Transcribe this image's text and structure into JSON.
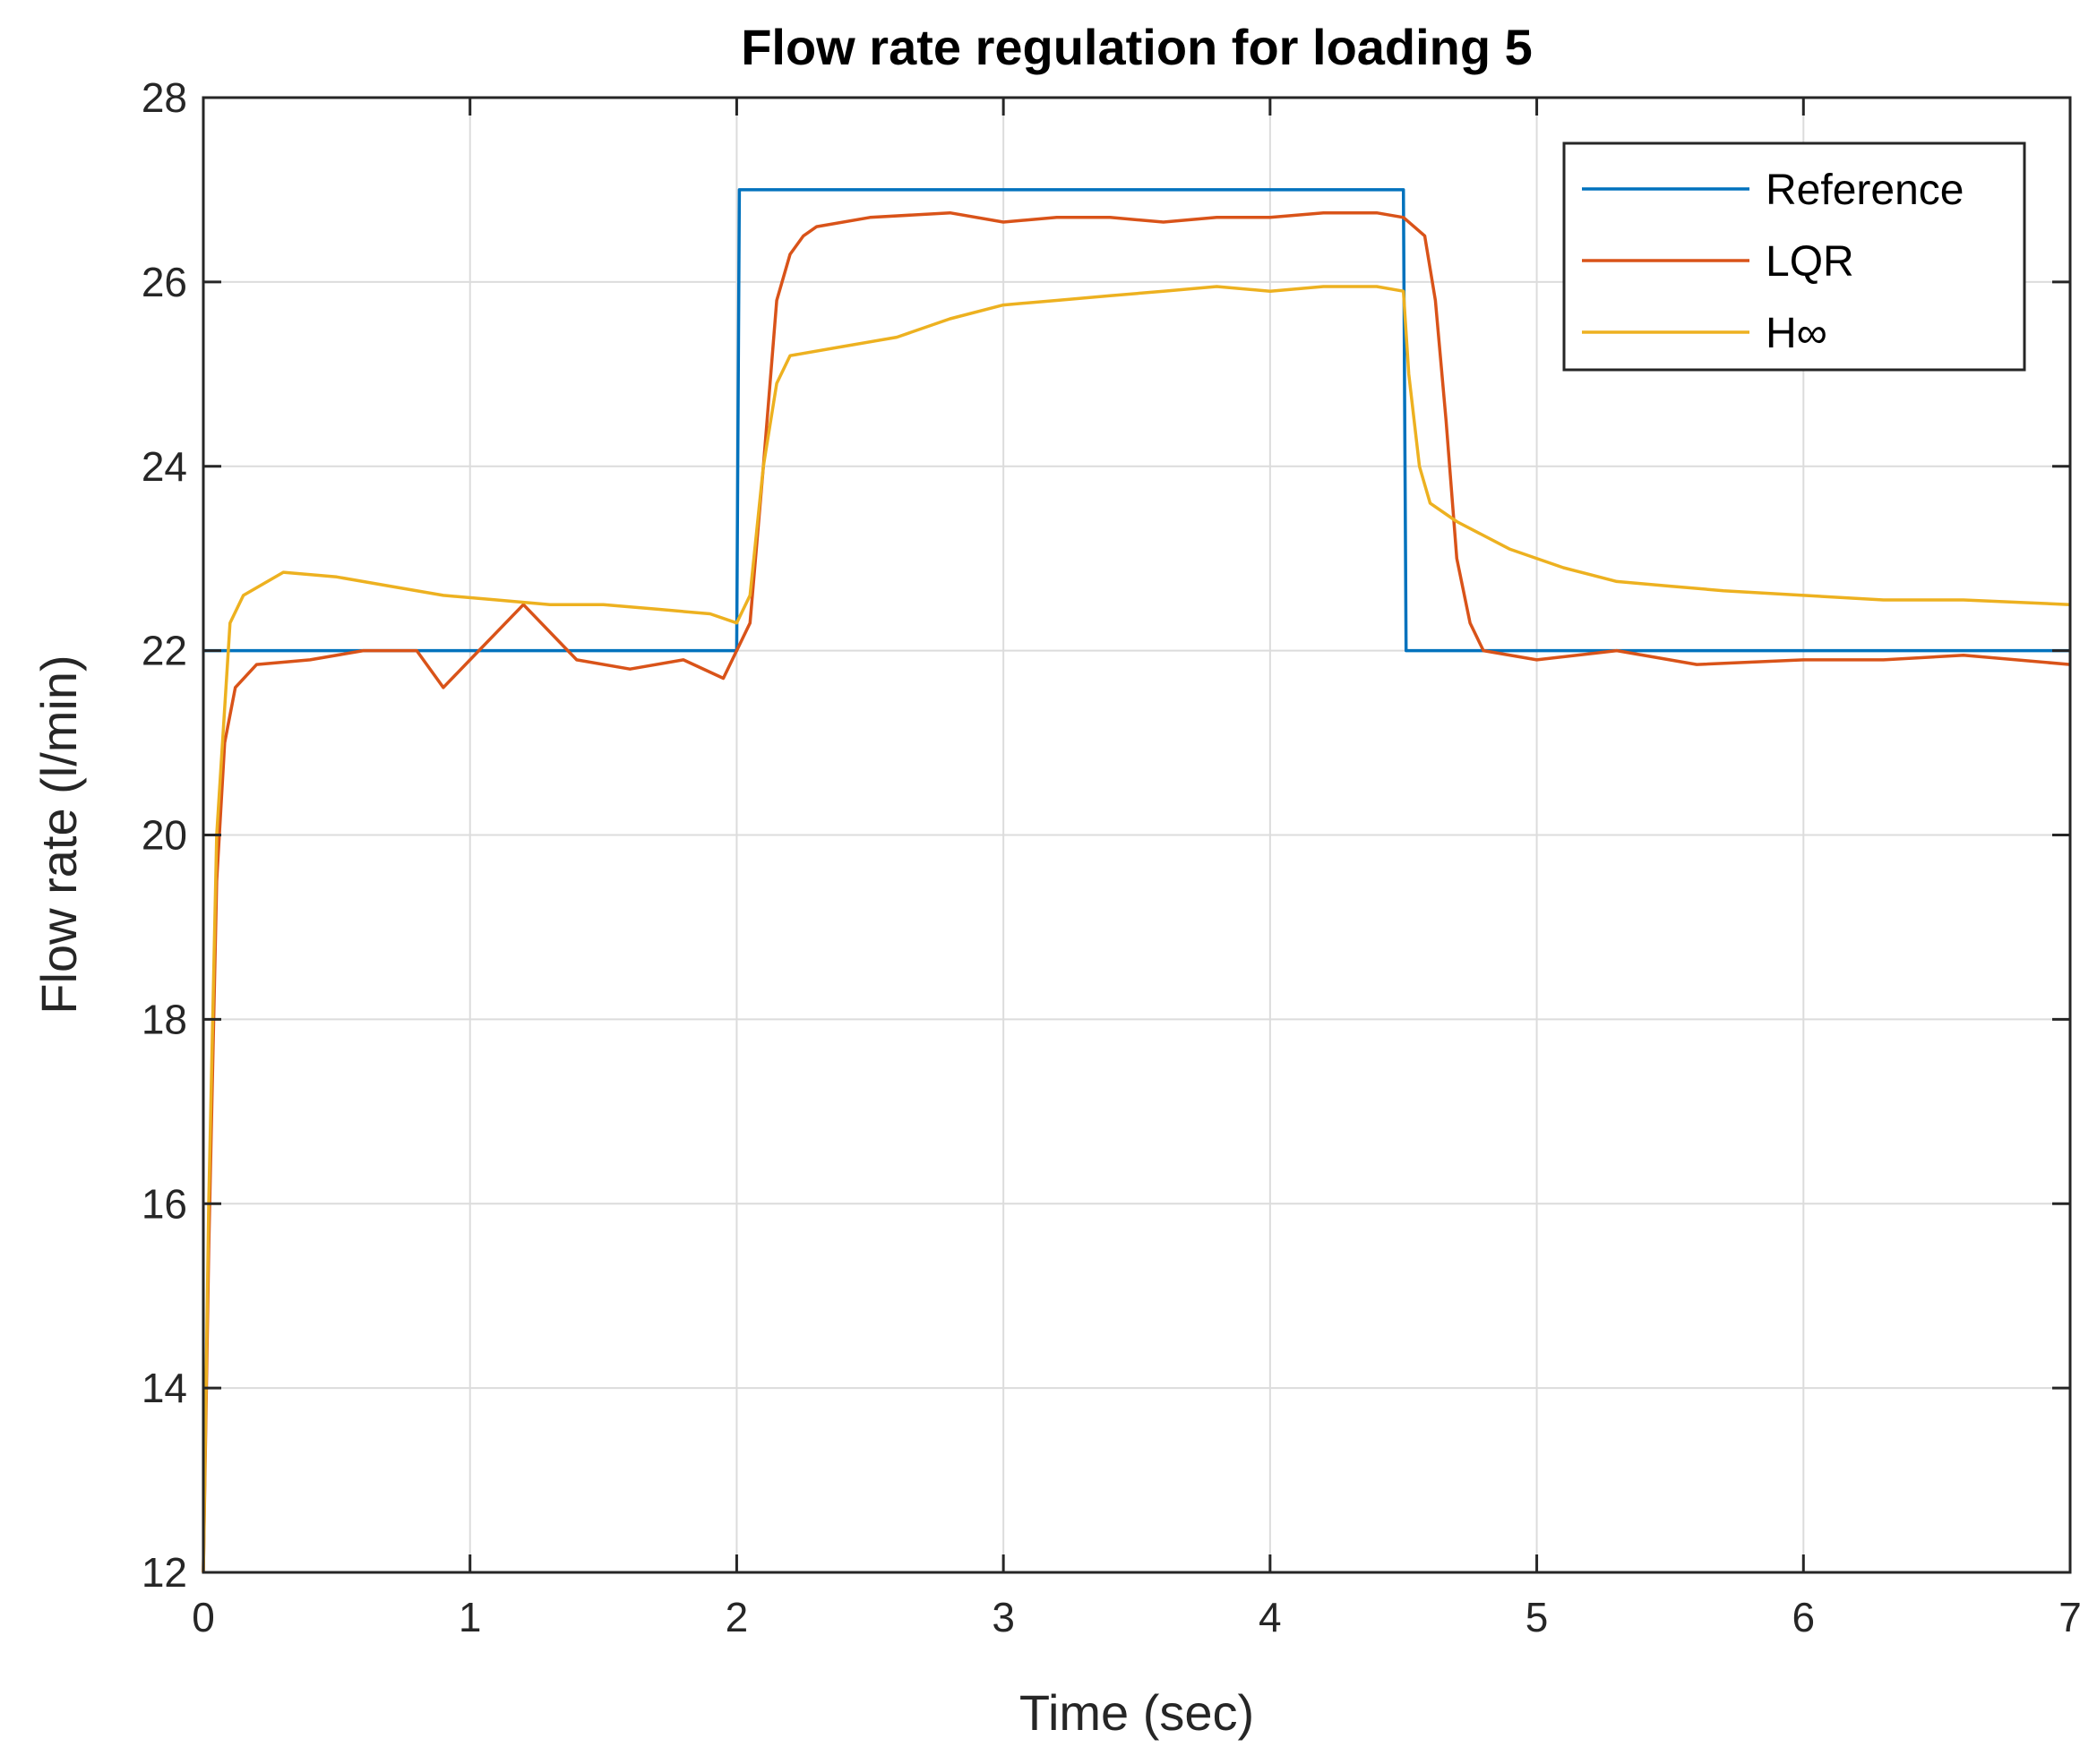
{
  "chart_data": {
    "type": "line",
    "title": "Flow rate regulation for loading 5",
    "xlabel": "Time (sec)",
    "ylabel": "Flow rate (l/min)",
    "xlim": [
      0,
      7
    ],
    "ylim": [
      12,
      28
    ],
    "xticks": [
      0,
      1,
      2,
      3,
      4,
      5,
      6,
      7
    ],
    "yticks": [
      12,
      14,
      16,
      18,
      20,
      22,
      24,
      26,
      28
    ],
    "grid": true,
    "legend_position": "top-right",
    "series": [
      {
        "name": "Reference",
        "color": "#0072BD",
        "points": [
          [
            0,
            22
          ],
          [
            2.0,
            22
          ],
          [
            2.01,
            27
          ],
          [
            4.5,
            27
          ],
          [
            4.51,
            22
          ],
          [
            7,
            22
          ]
        ]
      },
      {
        "name": "LQR",
        "color": "#D95319",
        "points": [
          [
            0,
            12
          ],
          [
            0.02,
            15.5
          ],
          [
            0.05,
            19.5
          ],
          [
            0.08,
            21.0
          ],
          [
            0.12,
            21.6
          ],
          [
            0.2,
            21.85
          ],
          [
            0.4,
            21.9
          ],
          [
            0.6,
            22.0
          ],
          [
            0.8,
            22.0
          ],
          [
            0.9,
            21.6
          ],
          [
            1.0,
            21.9
          ],
          [
            1.2,
            22.5
          ],
          [
            1.4,
            21.9
          ],
          [
            1.6,
            21.8
          ],
          [
            1.8,
            21.9
          ],
          [
            1.95,
            21.7
          ],
          [
            2.0,
            22.0
          ],
          [
            2.05,
            22.3
          ],
          [
            2.1,
            24.0
          ],
          [
            2.15,
            25.8
          ],
          [
            2.2,
            26.3
          ],
          [
            2.25,
            26.5
          ],
          [
            2.3,
            26.6
          ],
          [
            2.5,
            26.7
          ],
          [
            2.8,
            26.75
          ],
          [
            3.0,
            26.65
          ],
          [
            3.2,
            26.7
          ],
          [
            3.4,
            26.7
          ],
          [
            3.6,
            26.65
          ],
          [
            3.8,
            26.7
          ],
          [
            4.0,
            26.7
          ],
          [
            4.2,
            26.75
          ],
          [
            4.4,
            26.75
          ],
          [
            4.5,
            26.7
          ],
          [
            4.58,
            26.5
          ],
          [
            4.62,
            25.8
          ],
          [
            4.66,
            24.5
          ],
          [
            4.7,
            23.0
          ],
          [
            4.75,
            22.3
          ],
          [
            4.8,
            22.0
          ],
          [
            5.0,
            21.9
          ],
          [
            5.3,
            22.0
          ],
          [
            5.6,
            21.85
          ],
          [
            6.0,
            21.9
          ],
          [
            6.3,
            21.9
          ],
          [
            6.6,
            21.95
          ],
          [
            7.0,
            21.85
          ]
        ]
      },
      {
        "name": "H∞",
        "color": "#EDB120",
        "points": [
          [
            0,
            12
          ],
          [
            0.02,
            16
          ],
          [
            0.05,
            20
          ],
          [
            0.1,
            22.3
          ],
          [
            0.15,
            22.6
          ],
          [
            0.3,
            22.85
          ],
          [
            0.5,
            22.8
          ],
          [
            0.7,
            22.7
          ],
          [
            0.9,
            22.6
          ],
          [
            1.1,
            22.55
          ],
          [
            1.3,
            22.5
          ],
          [
            1.5,
            22.5
          ],
          [
            1.7,
            22.45
          ],
          [
            1.9,
            22.4
          ],
          [
            2.0,
            22.3
          ],
          [
            2.05,
            22.6
          ],
          [
            2.1,
            24.0
          ],
          [
            2.15,
            24.9
          ],
          [
            2.2,
            25.2
          ],
          [
            2.4,
            25.3
          ],
          [
            2.6,
            25.4
          ],
          [
            2.8,
            25.6
          ],
          [
            3.0,
            25.75
          ],
          [
            3.2,
            25.8
          ],
          [
            3.4,
            25.85
          ],
          [
            3.6,
            25.9
          ],
          [
            3.8,
            25.95
          ],
          [
            4.0,
            25.9
          ],
          [
            4.2,
            25.95
          ],
          [
            4.4,
            25.95
          ],
          [
            4.5,
            25.9
          ],
          [
            4.52,
            25.0
          ],
          [
            4.56,
            24.0
          ],
          [
            4.6,
            23.6
          ],
          [
            4.7,
            23.4
          ],
          [
            4.9,
            23.1
          ],
          [
            5.1,
            22.9
          ],
          [
            5.3,
            22.75
          ],
          [
            5.5,
            22.7
          ],
          [
            5.7,
            22.65
          ],
          [
            6.0,
            22.6
          ],
          [
            6.3,
            22.55
          ],
          [
            6.6,
            22.55
          ],
          [
            7.0,
            22.5
          ]
        ]
      }
    ]
  }
}
